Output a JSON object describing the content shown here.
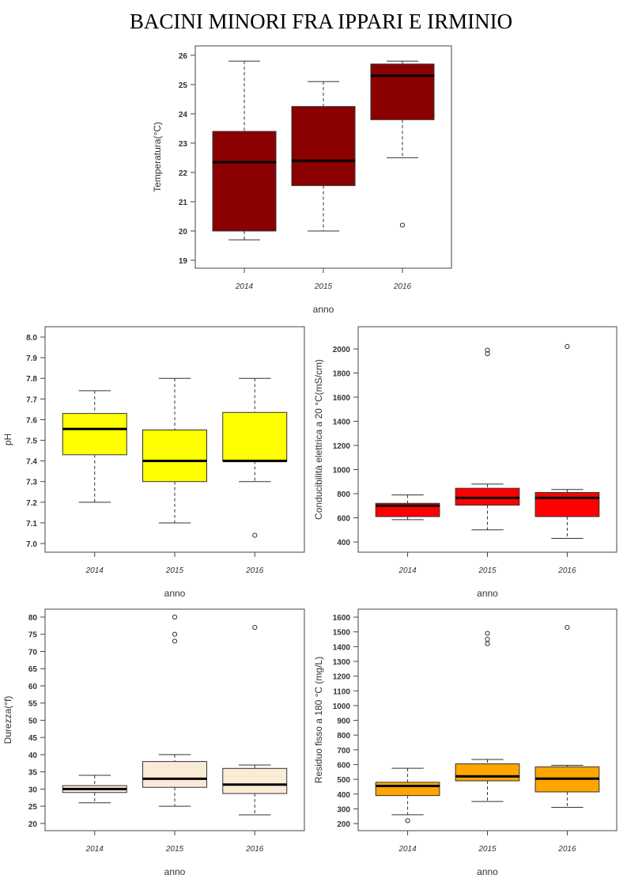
{
  "title": "BACINI MINORI FRA IPPARI E IRMINIO",
  "chart_data": [
    {
      "type": "boxplot",
      "xlabel": "anno",
      "ylabel": "Temperatura(°C)",
      "categories": [
        "2014",
        "2015",
        "2016"
      ],
      "color": "#8B0000",
      "ylim": [
        18.73,
        26.32
      ],
      "yticks": [
        19,
        20,
        21,
        22,
        23,
        24,
        25,
        26
      ],
      "boxes": [
        {
          "min": 19.7,
          "q1": 20.0,
          "median": 22.35,
          "q3": 23.4,
          "max": 25.8,
          "outliers": []
        },
        {
          "min": 20.0,
          "q1": 21.55,
          "median": 22.4,
          "q3": 24.25,
          "max": 25.1,
          "outliers": []
        },
        {
          "min": 22.5,
          "q1": 23.8,
          "median": 25.3,
          "q3": 25.7,
          "max": 25.8,
          "outliers": [
            20.2
          ]
        }
      ]
    },
    {
      "type": "boxplot",
      "xlabel": "anno",
      "ylabel": "pH",
      "categories": [
        "2014",
        "2015",
        "2016"
      ],
      "color": "#FFFF00",
      "ylim": [
        6.958,
        8.05
      ],
      "yticks": [
        "7.0",
        "7.1",
        "7.2",
        "7.3",
        "7.4",
        "7.5",
        "7.6",
        "7.7",
        "7.8",
        "7.9",
        "8.0"
      ],
      "boxes": [
        {
          "min": 7.2,
          "q1": 7.43,
          "median": 7.555,
          "q3": 7.63,
          "max": 7.74,
          "outliers": []
        },
        {
          "min": 7.1,
          "q1": 7.3,
          "median": 7.4,
          "q3": 7.55,
          "max": 7.8,
          "outliers": []
        },
        {
          "min": 7.3,
          "q1": 7.4,
          "median": 7.4,
          "q3": 7.635,
          "max": 7.8,
          "outliers": [
            7.04
          ]
        }
      ]
    },
    {
      "type": "boxplot",
      "xlabel": "anno",
      "ylabel": "Conducibilità elettrica a 20 °C(mS/cm)",
      "categories": [
        "2014",
        "2015",
        "2016"
      ],
      "color": "#FF0000",
      "ylim": [
        315,
        2184
      ],
      "yticks": [
        400,
        600,
        800,
        1000,
        1200,
        1400,
        1600,
        1800,
        2000
      ],
      "boxes": [
        {
          "min": 585,
          "q1": 610,
          "median": 700,
          "q3": 720,
          "max": 790,
          "outliers": []
        },
        {
          "min": 500,
          "q1": 705,
          "median": 765,
          "q3": 845,
          "max": 880,
          "outliers": [
            1960,
            1990
          ]
        },
        {
          "min": 430,
          "q1": 610,
          "median": 765,
          "q3": 810,
          "max": 835,
          "outliers": [
            2020
          ]
        }
      ]
    },
    {
      "type": "boxplot",
      "xlabel": "anno",
      "ylabel": "Durezza(°f)",
      "categories": [
        "2014",
        "2015",
        "2016"
      ],
      "color": "#FAEBD7",
      "ylim": [
        17.9,
        82.3
      ],
      "yticks": [
        20,
        25,
        30,
        35,
        40,
        45,
        50,
        55,
        60,
        65,
        70,
        75,
        80
      ],
      "boxes": [
        {
          "min": 26,
          "q1": 29,
          "median": 30,
          "q3": 31,
          "max": 34,
          "outliers": []
        },
        {
          "min": 25,
          "q1": 30.5,
          "median": 33,
          "q3": 38,
          "max": 40,
          "outliers": [
            73,
            75,
            80
          ]
        },
        {
          "min": 22.5,
          "q1": 28.7,
          "median": 31.3,
          "q3": 36,
          "max": 37,
          "outliers": [
            77
          ]
        }
      ]
    },
    {
      "type": "boxplot",
      "xlabel": "anno",
      "ylabel": "Residuo fisso a 180 °C (mg/L)",
      "categories": [
        "2014",
        "2015",
        "2016"
      ],
      "color": "#FFA500",
      "ylim": [
        152,
        1654
      ],
      "yticks": [
        200,
        300,
        400,
        500,
        600,
        700,
        800,
        900,
        1000,
        1100,
        1200,
        1300,
        1400,
        1500,
        1600
      ],
      "boxes": [
        {
          "min": 260,
          "q1": 390,
          "median": 455,
          "q3": 480,
          "max": 575,
          "outliers": [
            220
          ]
        },
        {
          "min": 350,
          "q1": 490,
          "median": 520,
          "q3": 605,
          "max": 635,
          "outliers": [
            1420,
            1450,
            1490
          ]
        },
        {
          "min": 310,
          "q1": 415,
          "median": 505,
          "q3": 585,
          "max": 595,
          "outliers": [
            1530
          ]
        }
      ]
    }
  ]
}
